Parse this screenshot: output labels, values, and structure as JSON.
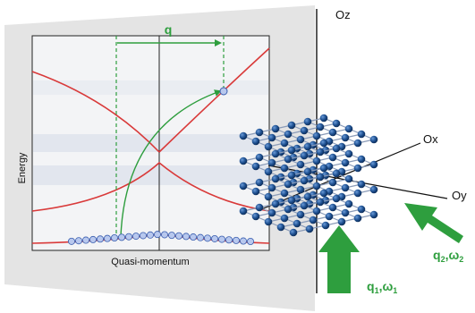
{
  "plot": {
    "x_axis_label": "Quasi-momentum",
    "y_axis_label": "Energy",
    "wavevector_label": "q"
  },
  "axes3d": {
    "z_label": "Oz",
    "x_label": "Ox",
    "y_label": "Oy"
  },
  "beams": [
    {
      "name": "beam-1",
      "q": "q",
      "q_sub": "1",
      "sep": ",",
      "w": "ω",
      "w_sub": "1"
    },
    {
      "name": "beam-2",
      "q": "q",
      "q_sub": "2",
      "sep": ",",
      "w": "ω",
      "w_sub": "2"
    }
  ],
  "colors": {
    "band_curve": "#d93a3a",
    "arrow_green": "#2e9e3e",
    "atom_blue": "#1d4f8f",
    "electron_fill": "#b8c8ee",
    "panel": "#e6e6e6"
  }
}
